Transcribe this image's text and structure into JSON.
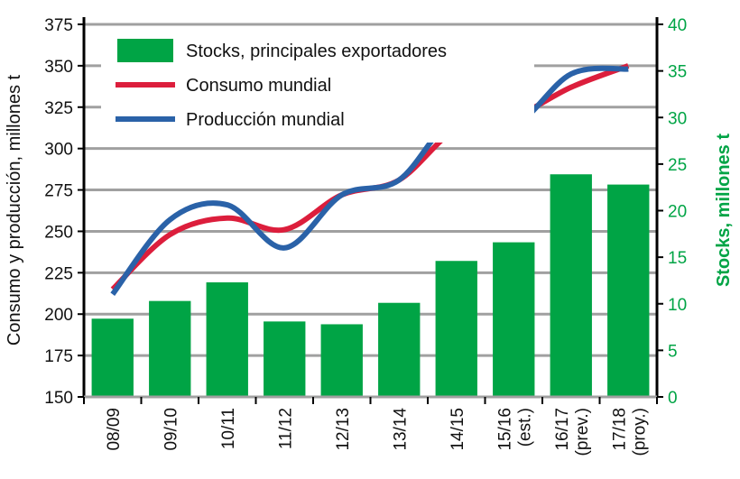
{
  "chart_data": {
    "type": "bar+line",
    "categories": [
      "08/09",
      "09/10",
      "10/11",
      "11/12",
      "12/13",
      "13/14",
      "14/15",
      "15/16\n(est.)",
      "16/17\n(prev.)",
      "17/18\n(proy.)"
    ],
    "ylabel": "Consumo y producción, millones t",
    "ylabel_right": "Stocks, millones t",
    "ylim": [
      150,
      375
    ],
    "yticks": [
      150,
      175,
      200,
      225,
      250,
      275,
      300,
      325,
      350,
      375
    ],
    "ylim_right": [
      0,
      40
    ],
    "yticks_right": [
      0,
      5,
      10,
      15,
      20,
      25,
      30,
      35,
      40
    ],
    "grid": true,
    "legend_position": "top-left",
    "series": [
      {
        "name": "Stocks, principales exportadores",
        "type": "bar",
        "axis": "right",
        "color": "#00a445",
        "values": [
          8.4,
          10.3,
          12.3,
          8.1,
          7.8,
          10.1,
          14.6,
          16.6,
          23.9,
          22.8
        ]
      },
      {
        "name": "Consumo mundial",
        "type": "line",
        "axis": "left",
        "color": "#dc1e3c",
        "values": [
          215,
          248,
          258,
          251,
          272,
          281,
          312,
          319,
          337,
          350
        ]
      },
      {
        "name": "Producción mundial",
        "type": "line",
        "axis": "left",
        "color": "#2a62a8",
        "values": [
          212,
          257,
          266,
          240,
          272,
          281,
          320,
          314,
          345,
          348
        ]
      }
    ],
    "right_axis_color": "#00a445"
  }
}
